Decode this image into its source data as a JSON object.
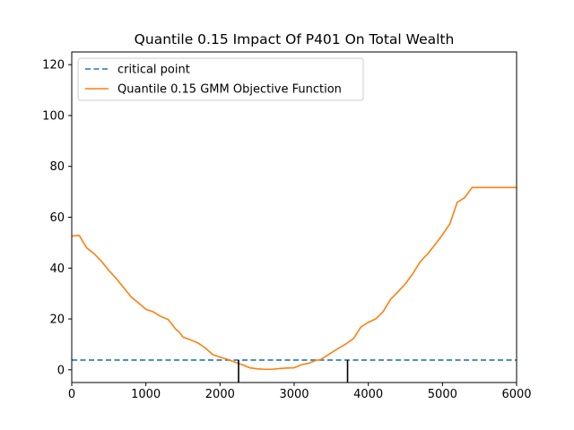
{
  "chart_data": {
    "type": "line",
    "title": "Quantile 0.15 Impact Of P401 On Total Wealth",
    "xlabel": "",
    "ylabel": "",
    "xlim": [
      0,
      6000
    ],
    "ylim": [
      -5,
      125
    ],
    "x_ticks": [
      0,
      1000,
      2000,
      3000,
      4000,
      5000,
      6000
    ],
    "x_tick_labels": [
      "0",
      "1000",
      "2000",
      "3000",
      "4000",
      "5000",
      "6000"
    ],
    "y_ticks": [
      0,
      20,
      40,
      60,
      80,
      100,
      120
    ],
    "y_tick_labels": [
      "0",
      "20",
      "40",
      "60",
      "80",
      "100",
      "120"
    ],
    "grid": false,
    "legend_location": "top-left",
    "series": [
      {
        "name": "critical point",
        "style": "dashed",
        "color": "#1f77b4",
        "kind": "hline",
        "y": 3.84
      },
      {
        "name": "Quantile 0.15 GMM Objective Function",
        "style": "solid",
        "color": "#ff7f0e",
        "kind": "line",
        "x": [
          0,
          100,
          200,
          300,
          400,
          500,
          600,
          700,
          800,
          900,
          1000,
          1100,
          1200,
          1300,
          1400,
          1450,
          1500,
          1600,
          1700,
          1800,
          1900,
          2000,
          2100,
          2200,
          2300,
          2400,
          2500,
          2600,
          2700,
          2800,
          2900,
          3000,
          3100,
          3200,
          3300,
          3350,
          3400,
          3500,
          3600,
          3700,
          3800,
          3900,
          4000,
          4100,
          4200,
          4300,
          4400,
          4500,
          4600,
          4700,
          4800,
          4900,
          5000,
          5100,
          5200,
          5300,
          5400,
          5500,
          5600,
          5700,
          5800,
          5900,
          6000
        ],
        "y": [
          52.6,
          52.9,
          48.0,
          45.7,
          42.7,
          39.1,
          35.9,
          32.3,
          28.7,
          26.3,
          23.8,
          22.8,
          21.0,
          19.8,
          16.1,
          14.8,
          12.9,
          11.8,
          10.6,
          8.6,
          6.0,
          5.0,
          4.1,
          3.0,
          2.0,
          0.8,
          0.4,
          0.2,
          0.2,
          0.5,
          0.7,
          0.8,
          2.0,
          2.6,
          3.8,
          3.9,
          4.8,
          6.7,
          8.5,
          10.2,
          12.3,
          16.8,
          18.7,
          20.0,
          22.9,
          27.7,
          30.7,
          33.8,
          37.8,
          42.5,
          45.6,
          49.2,
          53.1,
          57.4,
          65.9,
          67.7,
          71.7,
          71.7,
          71.7,
          71.7,
          71.7,
          71.7,
          71.7
        ]
      }
    ],
    "annotations": [
      {
        "kind": "vline",
        "x": 2250,
        "y_from": -5,
        "y_to": 3.84,
        "color": "#000000"
      },
      {
        "kind": "vline",
        "x": 3720,
        "y_from": -5,
        "y_to": 3.84,
        "color": "#000000"
      }
    ]
  }
}
